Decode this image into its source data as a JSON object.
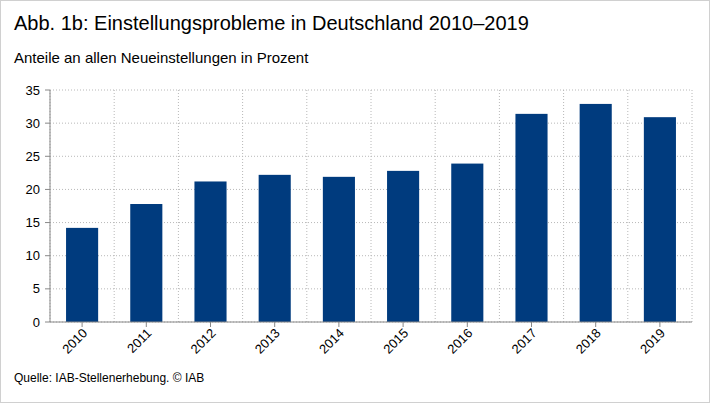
{
  "chart_data": {
    "type": "bar",
    "title": "Abb. 1b: Einstellungsprobleme in Deutschland 2010–2019",
    "subtitle": "Anteile an allen Neueinstellungen in Prozent",
    "source": "Quelle: IAB-Stellenerhebung. © IAB",
    "categories": [
      "2010",
      "2011",
      "2012",
      "2013",
      "2014",
      "2015",
      "2016",
      "2017",
      "2018",
      "2019"
    ],
    "values": [
      14.2,
      17.8,
      21.2,
      22.2,
      21.9,
      22.8,
      23.9,
      31.4,
      32.9,
      30.9
    ],
    "color": "#003b7e",
    "ylim": [
      0,
      35
    ],
    "yticks": [
      0,
      5,
      10,
      15,
      20,
      25,
      30,
      35
    ],
    "grid": true
  }
}
